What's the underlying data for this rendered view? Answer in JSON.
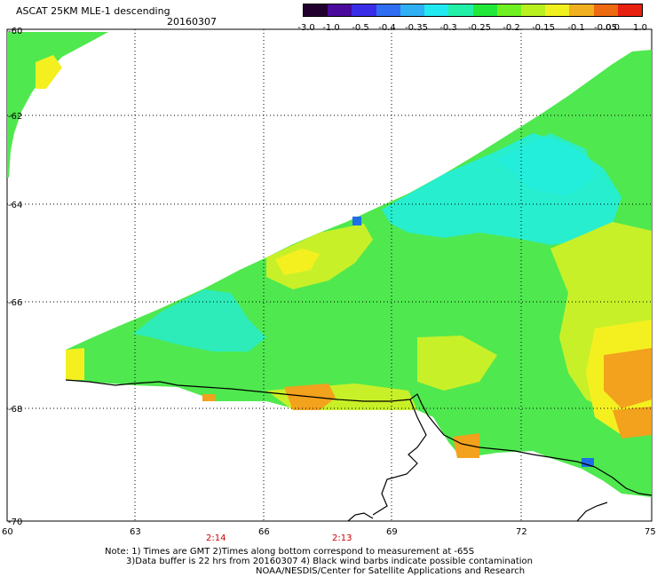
{
  "header": {
    "title": "ASCAT 25KM MLE-1 descending",
    "date": "20160307"
  },
  "colorbar": {
    "labels": [
      "-3.0",
      "-1.0",
      "-0.5",
      "-0.4",
      "-0.35",
      "-0.3",
      "-0.25",
      "-0.2",
      "-0.15",
      "-0.1",
      "-0.05",
      "0.0",
      "1.0"
    ],
    "colors": [
      "#22002e",
      "#4a0a9c",
      "#3a2de8",
      "#2f6ef2",
      "#2fb0f5",
      "#22e8f0",
      "#22f0a8",
      "#22e83a",
      "#6ff020",
      "#b8f020",
      "#f0f020",
      "#f0b020",
      "#ee6a10",
      "#e82010"
    ]
  },
  "axes": {
    "lon_labels": [
      "60",
      "63",
      "66",
      "69",
      "72",
      "75"
    ],
    "lat_labels": [
      "-60",
      "-62",
      "-64",
      "-66",
      "-68",
      "-70"
    ],
    "time_labels": [
      "2:14",
      "2:13"
    ]
  },
  "footer": {
    "note_line1": "Note: 1) Times are GMT 2)Times along bottom correspond to measurement at -65S",
    "note_line2": "3)Data buffer is 22 hrs from 20160307 4) Black wind barbs indicate possible contamination",
    "note_line3": "NOAA/NESDIS/Center for Satellite Applications and Research"
  },
  "map_colors": {
    "cyan": "#22eedd",
    "green": "#4fe84f",
    "yellow_green": "#c8f028",
    "yellow": "#f4f020",
    "orange": "#f2a21c",
    "blue": "#1e6ee8"
  }
}
